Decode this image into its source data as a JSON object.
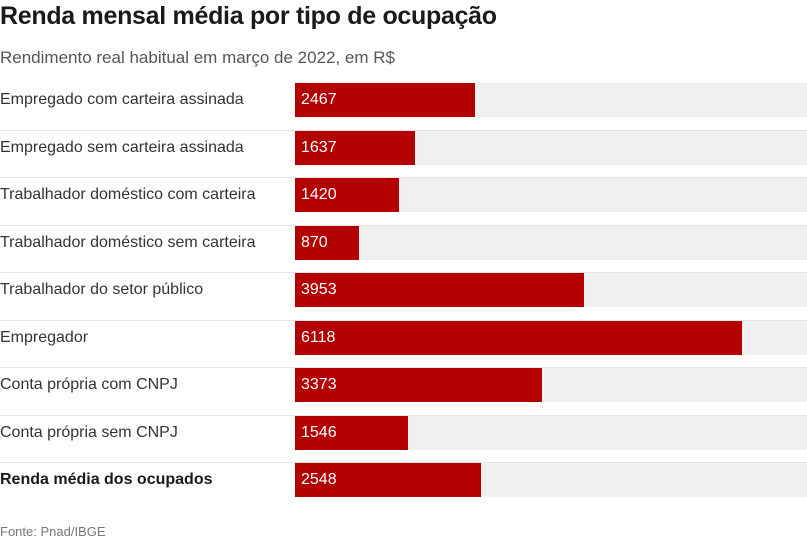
{
  "chart_data": {
    "type": "bar",
    "orientation": "horizontal",
    "title": "Renda mensal média por tipo de ocupação",
    "subtitle": "Rendimento real habitual em março de 2022, em R$",
    "source": "Fonte: Pnad/IBGE",
    "categories": [
      "Empregado com carteira assinada",
      "Empregado sem carteira assinada",
      "Trabalhador doméstico com carteira",
      "Trabalhador doméstico sem carteira",
      "Trabalhador do setor público",
      "Empregador",
      "Conta própria com CNPJ",
      "Conta própria sem CNPJ",
      "Renda média dos ocupados"
    ],
    "values": [
      2467,
      1637,
      1420,
      870,
      3953,
      6118,
      3373,
      1546,
      2548
    ],
    "value_labels": [
      "2467",
      "1637",
      "1420",
      "870",
      "3953",
      "6118",
      "3373",
      "1546",
      "2548"
    ],
    "bold_categories": [
      "Renda média dos ocupados"
    ],
    "xlim": [
      0,
      7000
    ],
    "bar_color": "#b30000",
    "track_color": "#f0f0f0",
    "grid": false,
    "legend": "none"
  }
}
